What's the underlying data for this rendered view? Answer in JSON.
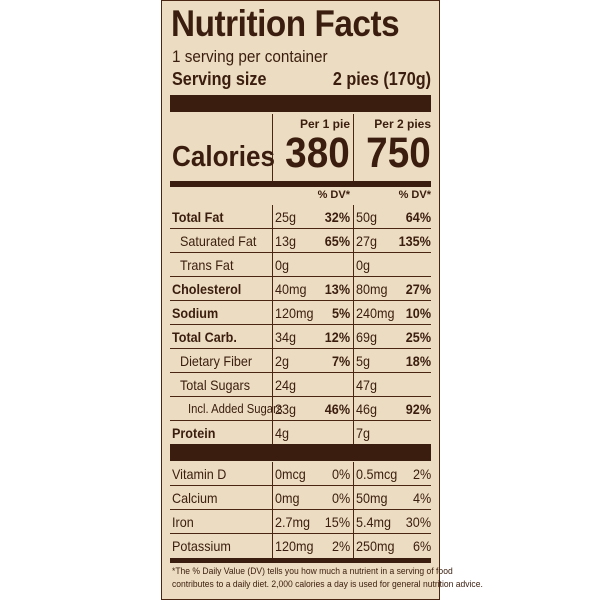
{
  "title": "Nutrition Facts",
  "servings_per_container": "1 serving per container",
  "serving_size_label": "Serving size",
  "serving_size_value": "2 pies (170g)",
  "column_headers": {
    "per1": "Per 1 pie",
    "per2": "Per 2 pies"
  },
  "calories": {
    "label": "Calories",
    "per1": "380",
    "per2": "750"
  },
  "dv_header": "% DV*",
  "nutrients": [
    {
      "name": "Total Fat",
      "bold": true,
      "indent": 0,
      "amt1": "25g",
      "dv1": "32%",
      "amt2": "50g",
      "dv2": "64%"
    },
    {
      "name": "Saturated Fat",
      "bold": false,
      "indent": 1,
      "amt1": "13g",
      "dv1": "65%",
      "amt2": "27g",
      "dv2": "135%"
    },
    {
      "name": "Trans Fat",
      "bold": false,
      "indent": 1,
      "amt1": "0g",
      "dv1": "",
      "amt2": "0g",
      "dv2": ""
    },
    {
      "name": "Cholesterol",
      "bold": true,
      "indent": 0,
      "amt1": "40mg",
      "dv1": "13%",
      "amt2": "80mg",
      "dv2": "27%"
    },
    {
      "name": "Sodium",
      "bold": true,
      "indent": 0,
      "amt1": "120mg",
      "dv1": "5%",
      "amt2": "240mg",
      "dv2": "10%"
    },
    {
      "name": "Total Carb.",
      "bold": true,
      "indent": 0,
      "amt1": "34g",
      "dv1": "12%",
      "amt2": "69g",
      "dv2": "25%"
    },
    {
      "name": "Dietary Fiber",
      "bold": false,
      "indent": 1,
      "amt1": "2g",
      "dv1": "7%",
      "amt2": "5g",
      "dv2": "18%"
    },
    {
      "name": "Total Sugars",
      "bold": false,
      "indent": 1,
      "amt1": "24g",
      "dv1": "",
      "amt2": "47g",
      "dv2": ""
    },
    {
      "name": "Incl. Added Sugars",
      "bold": false,
      "indent": 2,
      "amt1": "23g",
      "dv1": "46%",
      "amt2": "46g",
      "dv2": "92%"
    },
    {
      "name": "Protein",
      "bold": true,
      "indent": 0,
      "amt1": "4g",
      "dv1": "",
      "amt2": "7g",
      "dv2": ""
    }
  ],
  "vitamins": [
    {
      "name": "Vitamin D",
      "amt1": "0mcg",
      "dv1": "0%",
      "amt2": "0.5mcg",
      "dv2": "2%"
    },
    {
      "name": "Calcium",
      "amt1": "0mg",
      "dv1": "0%",
      "amt2": "50mg",
      "dv2": "4%"
    },
    {
      "name": "Iron",
      "amt1": "2.7mg",
      "dv1": "15%",
      "amt2": "5.4mg",
      "dv2": "30%"
    },
    {
      "name": "Potassium",
      "amt1": "120mg",
      "dv1": "2%",
      "amt2": "250mg",
      "dv2": "6%"
    }
  ],
  "footnote": [
    "*The % Daily Value (DV) tells you how much a nutrient in a serving of food",
    "contributes to a daily diet. 2,000 calories a day is used for general nutrition advice."
  ],
  "colors": {
    "background": "#ecdcc1",
    "ink": "#3a1d0e"
  }
}
